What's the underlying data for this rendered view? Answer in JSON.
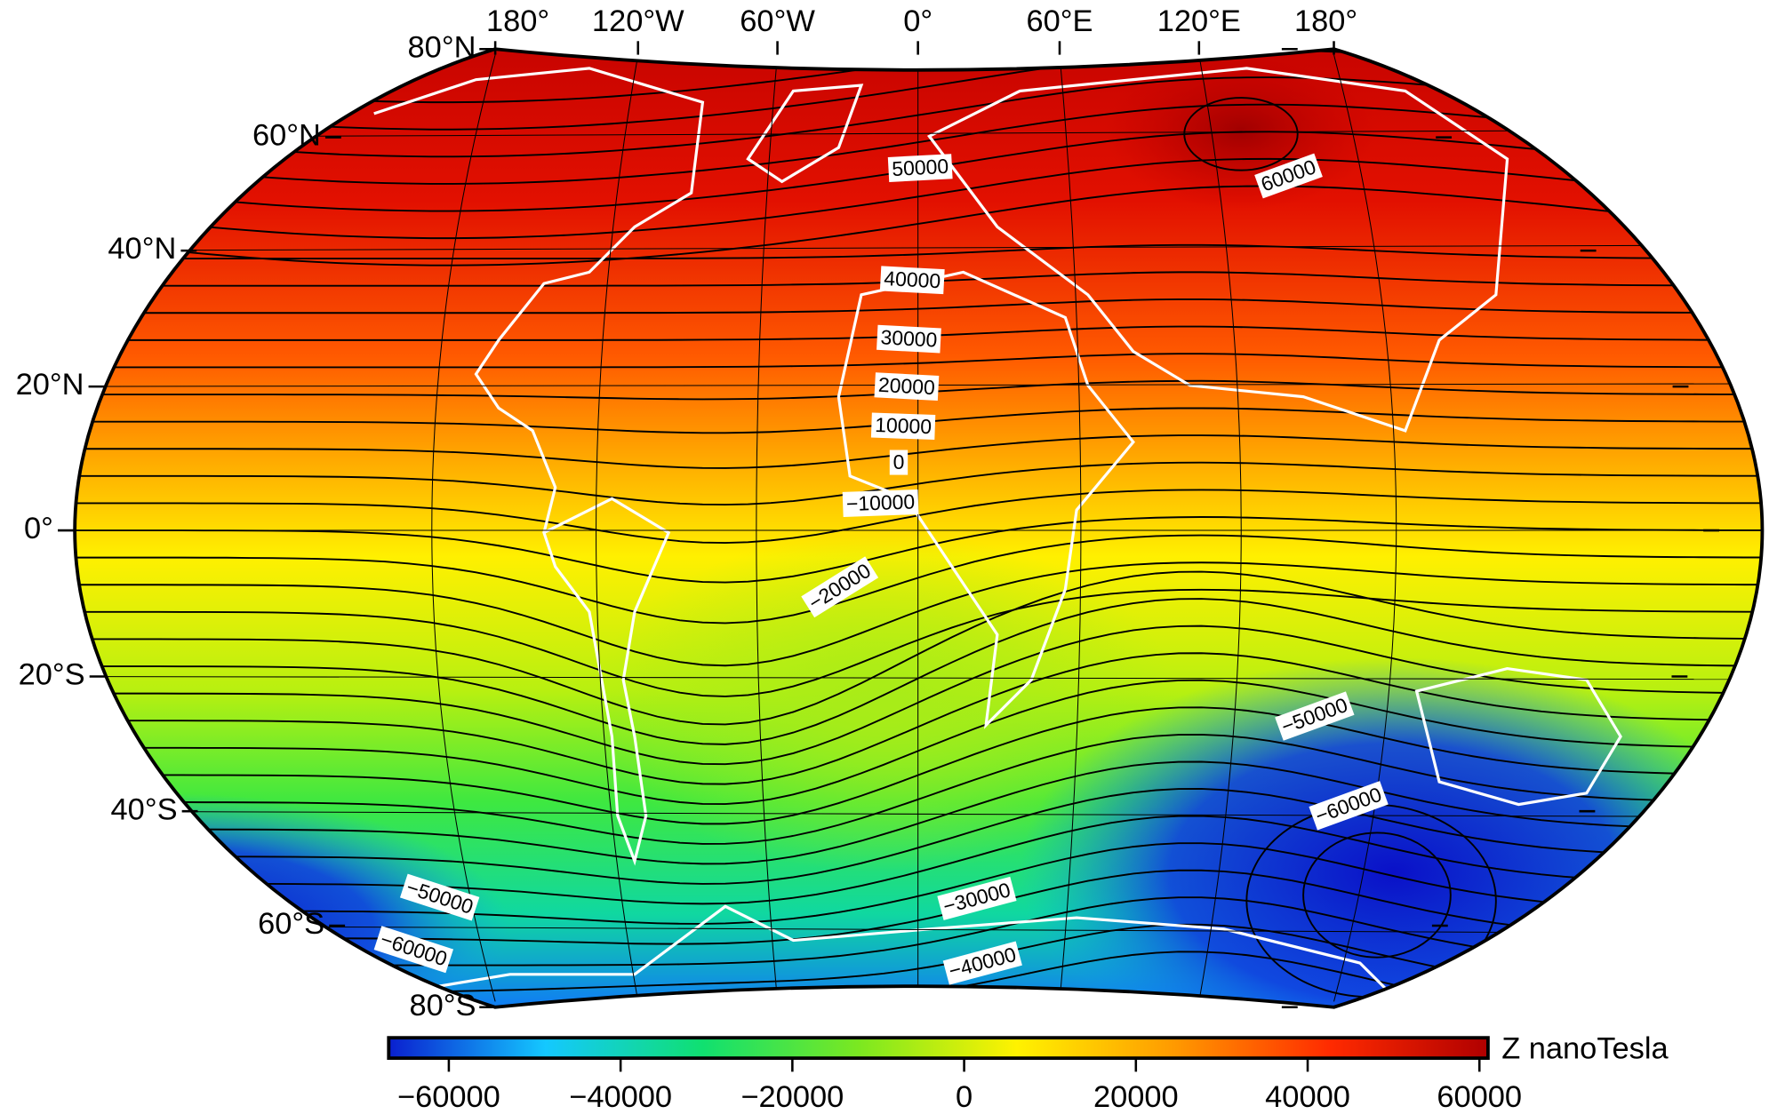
{
  "map": {
    "lon_labels": [
      "180°",
      "120°W",
      "60°W",
      "0°",
      "60°E",
      "120°E",
      "180°"
    ],
    "lat_labels": [
      "80°N",
      "60°N",
      "40°N",
      "20°N",
      "0°",
      "20°S",
      "40°S",
      "60°S",
      "80°S"
    ],
    "contour_labels": [
      "50000",
      "40000",
      "30000",
      "20000",
      "10000",
      "0",
      "−10000",
      "−20000",
      "−50000",
      "−60000",
      "60000",
      "−30000",
      "−40000",
      "−50000",
      "−60000"
    ],
    "colorbar": {
      "label": "Z nanoTesla",
      "lim": [
        -67000,
        61000
      ],
      "colors": [
        "#0a1fcf",
        "#14c8ff",
        "#10e070",
        "#7ce820",
        "#fff200",
        "#ff9a00",
        "#ff2a00",
        "#b00000"
      ],
      "ticks": [
        {
          "value": -60000,
          "label": "−60000"
        },
        {
          "value": -40000,
          "label": "−40000"
        },
        {
          "value": -20000,
          "label": "−20000"
        },
        0,
        20000,
        40000,
        60000
      ]
    }
  }
}
